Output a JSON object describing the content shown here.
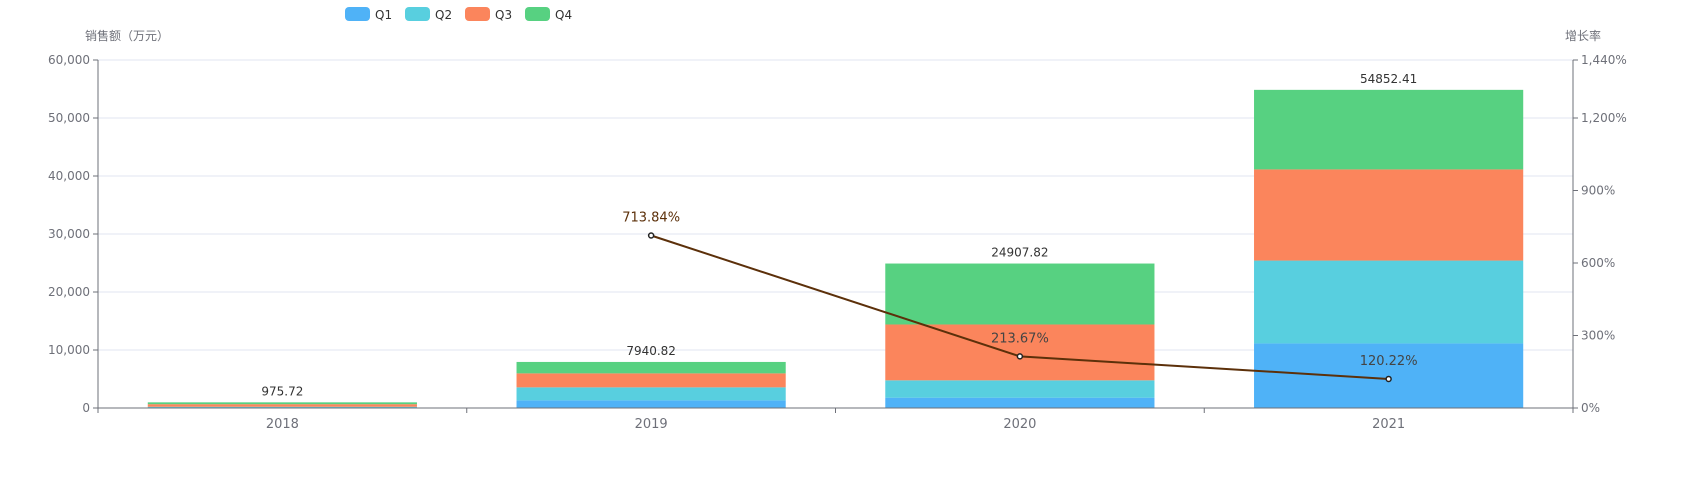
{
  "chart_data": {
    "type": "bar",
    "stacked": true,
    "categories": [
      "2018",
      "2019",
      "2020",
      "2021"
    ],
    "series": [
      {
        "name": "Q1",
        "color": "#4fb2f7",
        "values": [
          80,
          1320,
          1780,
          11136
        ]
      },
      {
        "name": "Q2",
        "color": "#58cfdf",
        "values": [
          130,
          2240,
          2990,
          14284
        ]
      },
      {
        "name": "Q3",
        "color": "#fb855c",
        "values": [
          450,
          2410,
          9630,
          15716
        ]
      },
      {
        "name": "Q4",
        "color": "#57d181",
        "values": [
          315.72,
          1970.82,
          10507.82,
          13716.41
        ]
      }
    ],
    "totals": [
      "975.72",
      "7940.82",
      "24907.82",
      "54852.41"
    ],
    "line": {
      "color": "#5c300a",
      "axis": "right",
      "values": [
        null,
        713.84,
        213.67,
        120.22
      ],
      "labels": [
        "",
        "713.84%",
        "213.67%",
        "120.22%"
      ]
    },
    "ylabel": "销售额（万元）",
    "ylabel_right": "增长率",
    "ylim": [
      0,
      60000
    ],
    "yticks": [
      "0",
      "10,000",
      "20,000",
      "30,000",
      "40,000",
      "50,000",
      "60,000"
    ],
    "ylim_right": [
      0,
      1440
    ],
    "yticks_right": [
      {
        "value": 0,
        "label": "0%"
      },
      {
        "value": 300,
        "label": "300%"
      },
      {
        "value": 600,
        "label": "600%"
      },
      {
        "value": 900,
        "label": "900%"
      },
      {
        "value": 1200,
        "label": "1,200%"
      },
      {
        "value": 1440,
        "label": "1,440%"
      }
    ],
    "legend_position": "top",
    "grid": true
  }
}
